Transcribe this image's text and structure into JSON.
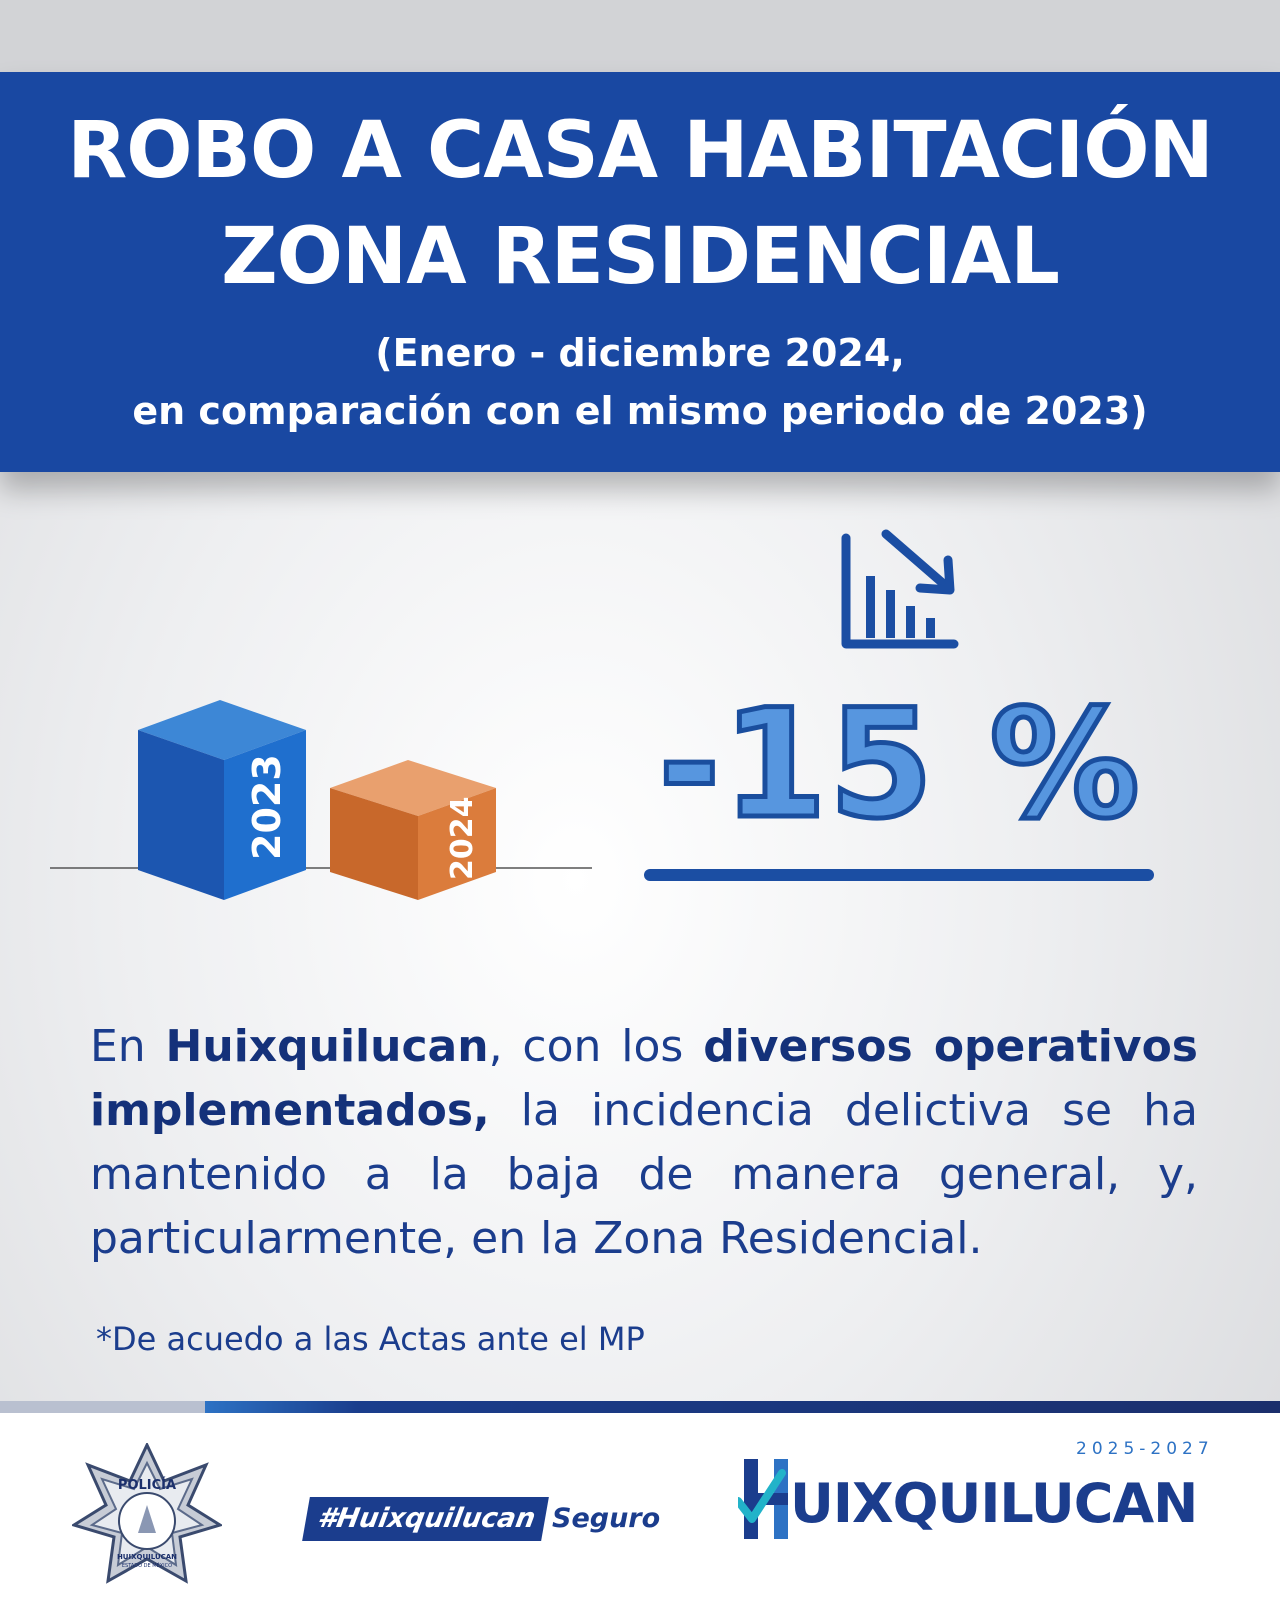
{
  "header": {
    "title_line1": "ROBO A CASA HABITACIÓN",
    "title_line2": "ZONA RESIDENCIAL",
    "subtitle_line1": "(Enero - diciembre 2024,",
    "subtitle_line2": "en comparación con el mismo periodo de 2023)"
  },
  "comparison": {
    "year_a": "2023",
    "year_b": "2024",
    "change": "-15 %",
    "colors": {
      "year_a": "#1f6fce",
      "year_b": "#d97a3a",
      "accent": "#1b4ea3"
    }
  },
  "body": {
    "intro": "En ",
    "place": "Huixquilucan",
    "mid1": ", con los ",
    "highlight": "diversos operativos implementados,",
    "rest": " la incidencia delictiva se ha mantenido a la baja de manera general, y, particularmente, en la Zona Residencial."
  },
  "footnote": "*De acuedo a las Actas ante el MP",
  "footer": {
    "badge_top": "POLICÍA",
    "badge_bottom": "HUIXQUILUCAN",
    "badge_state": "ESTADO DE MÉXICO",
    "hashtag_main": "#Huixquilucan",
    "hashtag_suffix": "Seguro",
    "municipality_years": "2025-2027",
    "municipality_name": "UIXQUILUCAN"
  },
  "icons": [
    "bar-chart-down-icon",
    "police-star-badge-icon",
    "checkmark-h-logo-icon"
  ]
}
